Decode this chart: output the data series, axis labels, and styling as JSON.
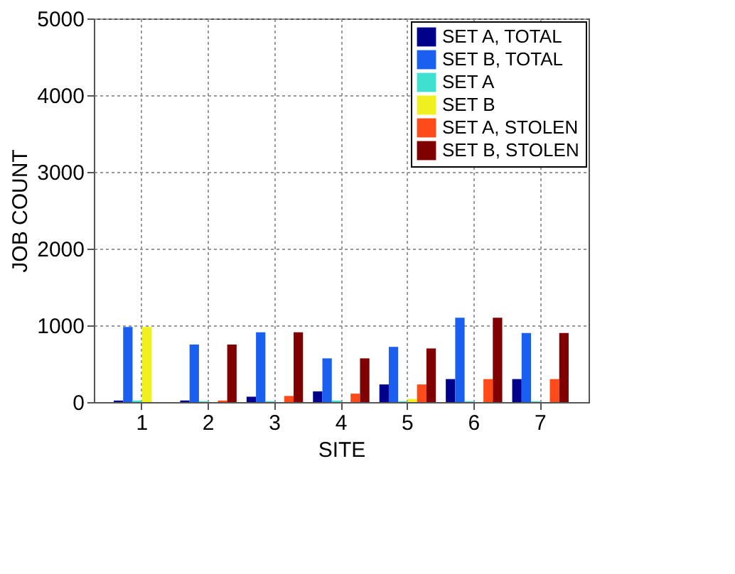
{
  "chart_data": {
    "type": "bar",
    "xlabel": "SITE",
    "ylabel": "JOB COUNT",
    "categories": [
      "1",
      "2",
      "3",
      "4",
      "5",
      "6",
      "7"
    ],
    "series": [
      {
        "name": "SET A, TOTAL",
        "color": "#00008b",
        "values": [
          20,
          20,
          70,
          140,
          230,
          300,
          300
        ]
      },
      {
        "name": "SET B, TOTAL",
        "color": "#1a5ff0",
        "values": [
          980,
          750,
          910,
          570,
          720,
          1100,
          900
        ]
      },
      {
        "name": "SET A",
        "color": "#40e0d0",
        "values": [
          20,
          10,
          10,
          20,
          10,
          10,
          10
        ]
      },
      {
        "name": "SET B",
        "color": "#f0f020",
        "values": [
          980,
          0,
          0,
          0,
          40,
          0,
          0
        ]
      },
      {
        "name": "SET A, STOLEN",
        "color": "#ff4a1a",
        "values": [
          0,
          20,
          80,
          110,
          230,
          300,
          300
        ]
      },
      {
        "name": "SET B, STOLEN",
        "color": "#800000",
        "values": [
          0,
          750,
          910,
          570,
          700,
          1100,
          900
        ]
      }
    ],
    "ylim": [
      0,
      5000
    ],
    "yticks": [
      0,
      1000,
      2000,
      3000,
      4000,
      5000
    ],
    "grid": true,
    "legend": "top right"
  }
}
